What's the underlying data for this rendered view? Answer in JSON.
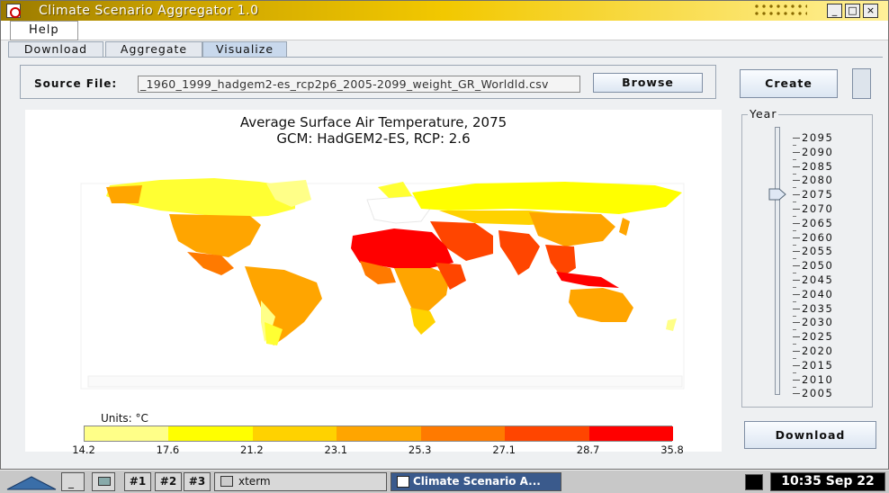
{
  "window": {
    "title": "Climate Scenario Aggregator 1.0",
    "min": "_",
    "max": "□",
    "close": "×"
  },
  "menu": {
    "help": "Help"
  },
  "tabs": [
    {
      "label": "Download"
    },
    {
      "label": "Aggregate"
    },
    {
      "label": "Visualize"
    }
  ],
  "source": {
    "label": "Source File:",
    "value": "_1960_1999_hadgem2-es_rcp2p6_2005-2099_weight_GR_Worldld.csv",
    "browse": "Browse"
  },
  "create": "Create",
  "map": {
    "title": "Average Surface Air Temperature, 2075",
    "subtitle": "GCM: HadGEM2-ES,  RCP: 2.6",
    "units": "Units:  °C",
    "legend_values": [
      "14.2",
      "17.6",
      "21.2",
      "23.1",
      "25.3",
      "27.1",
      "28.7",
      "35.8"
    ],
    "legend_colors": [
      "#ffff88",
      "#ffff00",
      "#ffd200",
      "#ffa500",
      "#ff7a00",
      "#ff4500",
      "#ff0000"
    ]
  },
  "year": {
    "label": "Year",
    "selected": "2075",
    "ticks": [
      "2095",
      "2090",
      "2085",
      "2080",
      "2075",
      "2070",
      "2065",
      "2060",
      "2055",
      "2050",
      "2045",
      "2040",
      "2035",
      "2030",
      "2025",
      "2020",
      "2015",
      "2010",
      "2005"
    ]
  },
  "download": "Download",
  "taskbar": {
    "ws1": "#1",
    "ws2": "#2",
    "ws3": "#3",
    "xterm": "xterm",
    "app": "Climate Scenario A...",
    "clock": "10:35 Sep 22"
  }
}
